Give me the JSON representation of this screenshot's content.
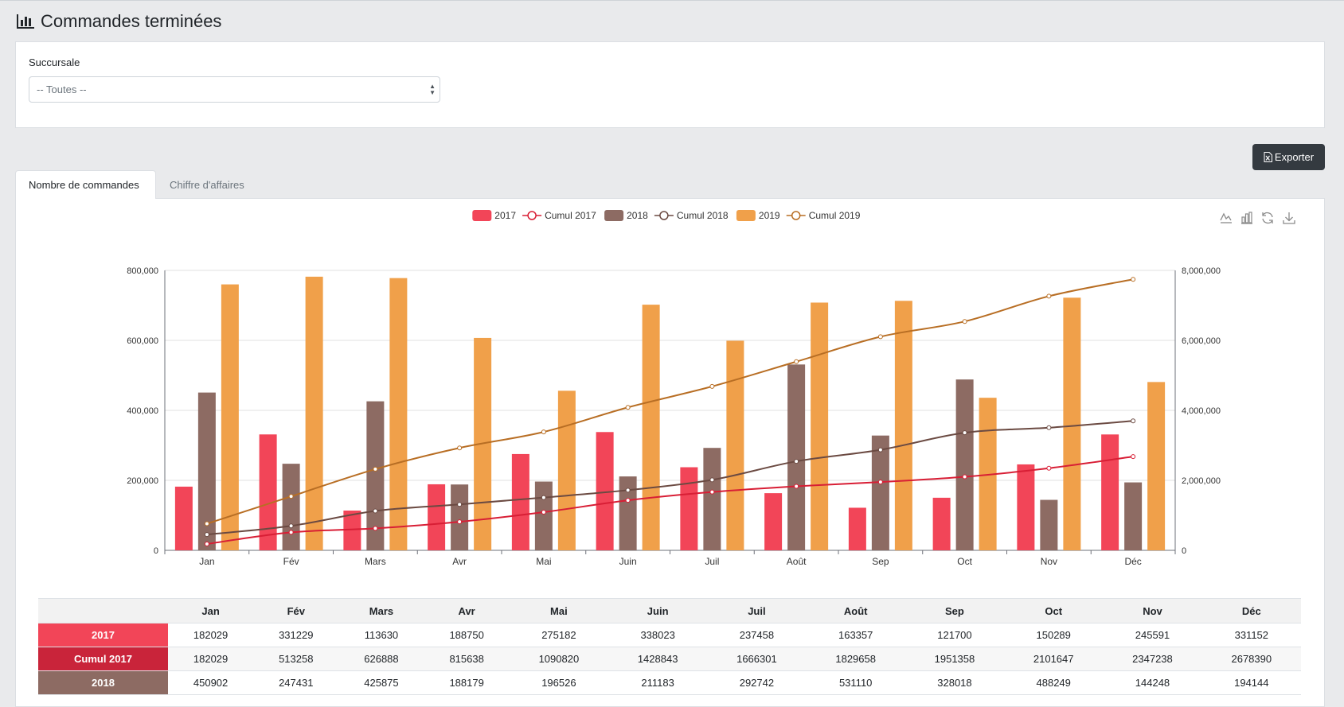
{
  "page": {
    "title": "Commandes terminées"
  },
  "filter": {
    "label": "Succursale",
    "selected": "-- Toutes --"
  },
  "toolbar": {
    "export_label": "Exporter"
  },
  "tabs": [
    {
      "label": "Nombre de commandes",
      "active": true
    },
    {
      "label": "Chiffre d'affaires",
      "active": false
    }
  ],
  "chart_tools": [
    "line-chart-icon",
    "bar-chart-icon",
    "refresh-icon",
    "download-icon"
  ],
  "chart_data": {
    "type": "bar",
    "categories": [
      "Jan",
      "Fév",
      "Mars",
      "Avr",
      "Mai",
      "Juin",
      "Juil",
      "Août",
      "Sep",
      "Oct",
      "Nov",
      "Déc"
    ],
    "y_left": {
      "min": 0,
      "max": 800000,
      "ticks": [
        "0",
        "200,000",
        "400,000",
        "600,000",
        "800,000"
      ]
    },
    "y_right": {
      "min": 0,
      "max": 8000000,
      "ticks": [
        "0",
        "2,000,000",
        "4,000,000",
        "6,000,000",
        "8,000,000"
      ]
    },
    "grid": true,
    "legend_position": "top-center",
    "series": [
      {
        "name": "2017",
        "type": "bar",
        "axis": "left",
        "color": "#f24558",
        "values": [
          182029,
          331229,
          113630,
          188750,
          275182,
          338023,
          237458,
          163357,
          121700,
          150289,
          245591,
          331152
        ]
      },
      {
        "name": "Cumul 2017",
        "type": "line",
        "axis": "right",
        "color": "#d81e35",
        "values": [
          182029,
          513258,
          626888,
          815638,
          1090820,
          1428843,
          1666301,
          1829658,
          1951358,
          2101647,
          2347238,
          2678390
        ]
      },
      {
        "name": "2018",
        "type": "bar",
        "axis": "left",
        "color": "#8d6b63",
        "values": [
          450902,
          247431,
          425875,
          188179,
          196526,
          211183,
          292742,
          531110,
          328018,
          488249,
          144248,
          194144
        ]
      },
      {
        "name": "Cumul 2018",
        "type": "line",
        "axis": "right",
        "color": "#6b4a42",
        "values": [
          450902,
          698333,
          1124208,
          1312387,
          1508913,
          1720096,
          2012838,
          2543948,
          2871966,
          3360215,
          3504463,
          3698607
        ]
      },
      {
        "name": "2019",
        "type": "bar",
        "axis": "left",
        "color": "#f0a04a",
        "values": [
          760000,
          782000,
          778000,
          607000,
          456000,
          702000,
          599000,
          708000,
          713000,
          436000,
          722000,
          481000
        ]
      },
      {
        "name": "Cumul 2019",
        "type": "line",
        "axis": "right",
        "color": "#b86e24",
        "values": [
          760000,
          1542000,
          2320000,
          2927000,
          3383000,
          4085000,
          4684000,
          5392000,
          6105000,
          6541000,
          7263000,
          7744000
        ]
      }
    ]
  },
  "table": {
    "columns": [
      "Jan",
      "Fév",
      "Mars",
      "Avr",
      "Mai",
      "Juin",
      "Juil",
      "Août",
      "Sep",
      "Oct",
      "Nov",
      "Déc"
    ],
    "rows": [
      {
        "label": "2017",
        "color": "#f24558",
        "values": [
          "182029",
          "331229",
          "113630",
          "188750",
          "275182",
          "338023",
          "237458",
          "163357",
          "121700",
          "150289",
          "245591",
          "331152"
        ]
      },
      {
        "label": "Cumul 2017",
        "color": "#c9243a",
        "values": [
          "182029",
          "513258",
          "626888",
          "815638",
          "1090820",
          "1428843",
          "1666301",
          "1829658",
          "1951358",
          "2101647",
          "2347238",
          "2678390"
        ]
      },
      {
        "label": "2018",
        "color": "#8d6b63",
        "values": [
          "450902",
          "247431",
          "425875",
          "188179",
          "196526",
          "211183",
          "292742",
          "531110",
          "328018",
          "488249",
          "144248",
          "194144"
        ]
      }
    ]
  }
}
